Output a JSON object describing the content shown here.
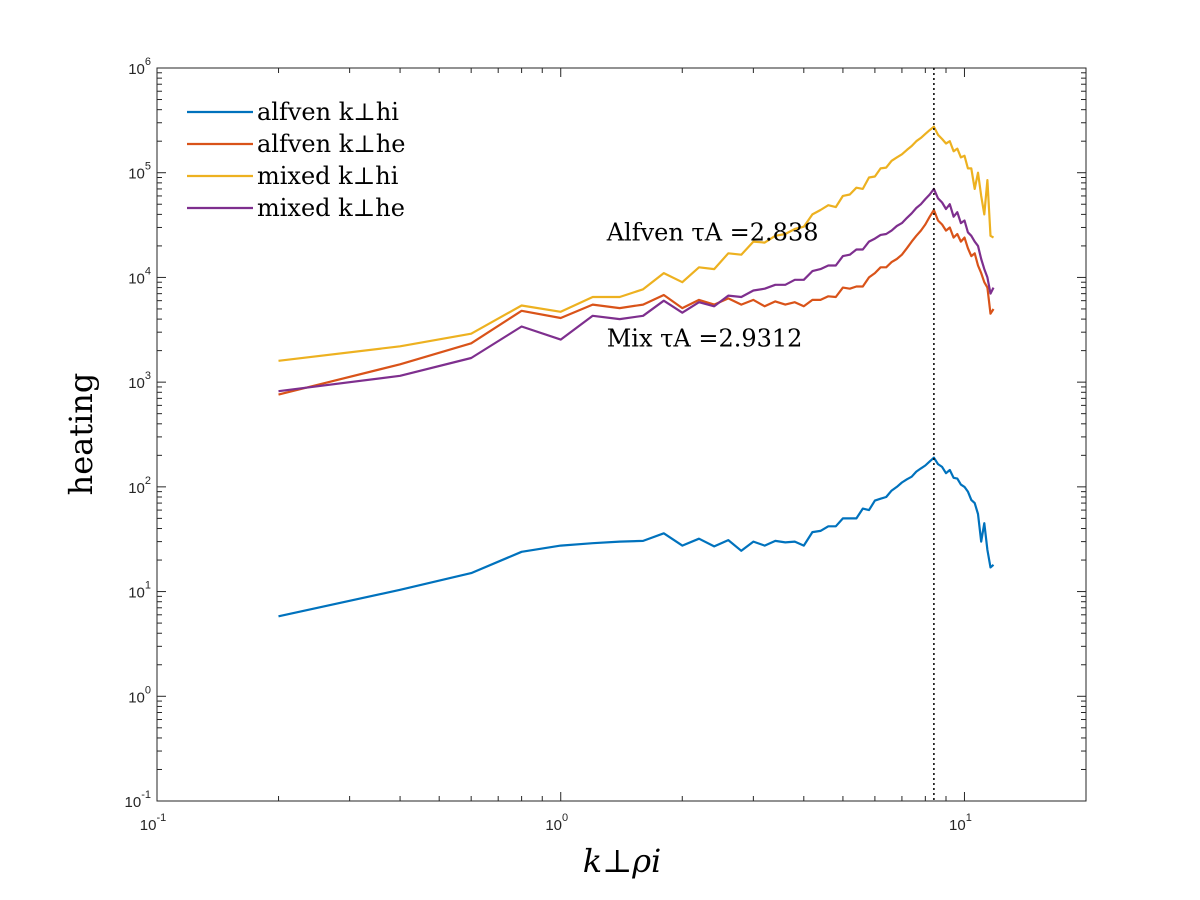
{
  "chart_data": {
    "type": "line",
    "xscale": "log",
    "yscale": "log",
    "xlim": [
      0.1,
      20
    ],
    "ylim": [
      0.1,
      1000000
    ],
    "grid": false,
    "legend_placement": "top-left",
    "xlabel": "k⊥ρi",
    "ylabel": "heating",
    "x_ticks": [
      {
        "value": 0.1,
        "base": "10",
        "exp": "-1"
      },
      {
        "value": 1,
        "base": "10",
        "exp": "0"
      },
      {
        "value": 10,
        "base": "10",
        "exp": "1"
      }
    ],
    "y_ticks": [
      {
        "value": 0.1,
        "base": "10",
        "exp": "-1"
      },
      {
        "value": 1,
        "base": "10",
        "exp": "0"
      },
      {
        "value": 10,
        "base": "10",
        "exp": "1"
      },
      {
        "value": 100,
        "base": "10",
        "exp": "2"
      },
      {
        "value": 1000,
        "base": "10",
        "exp": "3"
      },
      {
        "value": 10000,
        "base": "10",
        "exp": "4"
      },
      {
        "value": 100000,
        "base": "10",
        "exp": "5"
      },
      {
        "value": 1000000,
        "base": "10",
        "exp": "6"
      }
    ],
    "vline": {
      "x": 8.4,
      "style": "dotted"
    },
    "annotations": [
      {
        "id": "alfven",
        "label": "Alfven τA =2.838",
        "x": 1.2,
        "y": 27000
      },
      {
        "id": "mix",
        "label": "Mix τA =2.9312",
        "x": 1.2,
        "y": 2600
      }
    ],
    "series": [
      {
        "name": "alfven k⊥hi",
        "color": "#0072BD",
        "x": [
          0.2,
          0.4,
          0.6,
          0.8,
          1.0,
          1.2,
          1.4,
          1.6,
          1.8,
          2.0,
          2.2,
          2.4,
          2.6,
          2.8,
          3.0,
          3.2,
          3.4,
          3.6,
          3.8,
          4.0,
          4.2,
          4.4,
          4.6,
          4.8,
          5.0,
          5.2,
          5.4,
          5.6,
          5.8,
          6.0,
          6.2,
          6.4,
          6.6,
          6.8,
          7.0,
          7.2,
          7.4,
          7.6,
          7.8,
          8.0,
          8.2,
          8.4,
          8.6,
          8.8,
          9.0,
          9.2,
          9.4,
          9.6,
          9.8,
          10.0,
          10.2,
          10.4,
          10.6,
          10.8,
          11.0,
          11.2,
          11.4,
          11.6,
          11.8
        ],
        "values": [
          5.8,
          10.4,
          15,
          24,
          27.5,
          29,
          30,
          30.5,
          36,
          27.5,
          32,
          27,
          31,
          24.5,
          30,
          27.5,
          30.5,
          29.5,
          30,
          27.5,
          37,
          38,
          42,
          42,
          50,
          50,
          50,
          62,
          60,
          74,
          77,
          80,
          92,
          100,
          110,
          118,
          125,
          140,
          150,
          160,
          175,
          190,
          165,
          155,
          135,
          145,
          122,
          120,
          105,
          100,
          90,
          75,
          70,
          55,
          30,
          45,
          25,
          17,
          18
        ]
      },
      {
        "name": "alfven k⊥he",
        "color": "#D95319",
        "x": [
          0.2,
          0.4,
          0.6,
          0.8,
          1.0,
          1.2,
          1.4,
          1.6,
          1.8,
          2.0,
          2.2,
          2.4,
          2.6,
          2.8,
          3.0,
          3.2,
          3.4,
          3.6,
          3.8,
          4.0,
          4.2,
          4.4,
          4.6,
          4.8,
          5.0,
          5.2,
          5.4,
          5.6,
          5.8,
          6.0,
          6.2,
          6.4,
          6.6,
          6.8,
          7.0,
          7.2,
          7.4,
          7.6,
          7.8,
          8.0,
          8.2,
          8.4,
          8.6,
          8.8,
          9.0,
          9.2,
          9.4,
          9.6,
          9.8,
          10.0,
          10.2,
          10.4,
          10.6,
          10.8,
          11.0,
          11.2,
          11.4,
          11.6,
          11.8
        ],
        "values": [
          760,
          1480,
          2350,
          4800,
          4100,
          5500,
          5100,
          5500,
          6800,
          5100,
          6100,
          5500,
          6300,
          5500,
          6100,
          5300,
          5900,
          5500,
          5800,
          5300,
          6100,
          6100,
          6600,
          6500,
          8000,
          7800,
          8200,
          8200,
          10000,
          11000,
          12500,
          12500,
          14000,
          15000,
          16500,
          19000,
          22000,
          25000,
          28000,
          32000,
          38000,
          44000,
          35000,
          32000,
          28000,
          30000,
          24000,
          26000,
          22000,
          24000,
          19000,
          16000,
          17000,
          13000,
          11000,
          9000,
          8000,
          4500,
          5000
        ]
      },
      {
        "name": "mixed k⊥hi",
        "color": "#EDB120",
        "x": [
          0.2,
          0.4,
          0.6,
          0.8,
          1.0,
          1.2,
          1.4,
          1.6,
          1.8,
          2.0,
          2.2,
          2.4,
          2.6,
          2.8,
          3.0,
          3.2,
          3.4,
          3.6,
          3.8,
          4.0,
          4.2,
          4.4,
          4.6,
          4.8,
          5.0,
          5.2,
          5.4,
          5.6,
          5.8,
          6.0,
          6.2,
          6.4,
          6.6,
          6.8,
          7.0,
          7.2,
          7.4,
          7.6,
          7.8,
          8.0,
          8.2,
          8.4,
          8.6,
          8.8,
          9.0,
          9.2,
          9.4,
          9.6,
          9.8,
          10.0,
          10.2,
          10.4,
          10.6,
          10.8,
          11.0,
          11.2,
          11.4,
          11.6,
          11.8
        ],
        "values": [
          1600,
          2200,
          2900,
          5400,
          4700,
          6500,
          6500,
          7700,
          11000,
          9000,
          12500,
          12000,
          17000,
          16500,
          22000,
          21500,
          25000,
          26000,
          29000,
          30500,
          40000,
          44000,
          49000,
          47000,
          60000,
          62000,
          72000,
          70000,
          90000,
          92000,
          110000,
          112000,
          130000,
          140000,
          150000,
          165000,
          180000,
          200000,
          215000,
          235000,
          255000,
          275000,
          230000,
          210000,
          190000,
          200000,
          160000,
          170000,
          140000,
          145000,
          110000,
          110000,
          70000,
          100000,
          60000,
          40000,
          85000,
          25000,
          24000
        ]
      },
      {
        "name": "mixed k⊥he",
        "color": "#7E2F8E",
        "x": [
          0.2,
          0.4,
          0.6,
          0.8,
          1.0,
          1.2,
          1.4,
          1.6,
          1.8,
          2.0,
          2.2,
          2.4,
          2.6,
          2.8,
          3.0,
          3.2,
          3.4,
          3.6,
          3.8,
          4.0,
          4.2,
          4.4,
          4.6,
          4.8,
          5.0,
          5.2,
          5.4,
          5.6,
          5.8,
          6.0,
          6.2,
          6.4,
          6.6,
          6.8,
          7.0,
          7.2,
          7.4,
          7.6,
          7.8,
          8.0,
          8.2,
          8.4,
          8.6,
          8.8,
          9.0,
          9.2,
          9.4,
          9.6,
          9.8,
          10.0,
          10.2,
          10.4,
          10.6,
          10.8,
          11.0,
          11.2,
          11.4,
          11.6,
          11.8
        ],
        "values": [
          820,
          1150,
          1700,
          3400,
          2550,
          4300,
          4000,
          4300,
          6000,
          4600,
          5800,
          5300,
          6700,
          6500,
          7500,
          7800,
          8500,
          8500,
          9500,
          9500,
          11500,
          12000,
          13000,
          13000,
          16000,
          16500,
          18500,
          18500,
          22000,
          23500,
          25500,
          26000,
          28000,
          31000,
          33000,
          37000,
          41000,
          46000,
          50000,
          56000,
          62000,
          70000,
          57000,
          52000,
          45000,
          50000,
          38000,
          42000,
          33000,
          35000,
          27000,
          25000,
          22000,
          20000,
          15000,
          12000,
          10000,
          7000,
          8000
        ]
      }
    ]
  }
}
